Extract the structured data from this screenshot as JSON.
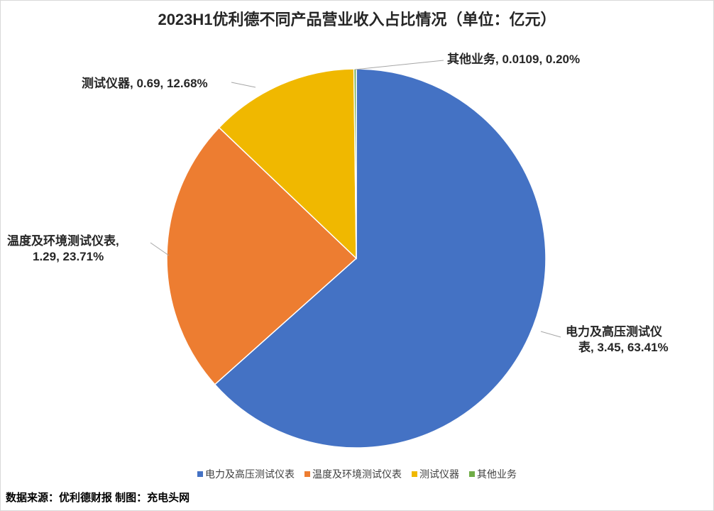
{
  "title": "2023H1优利德不同产品营业收入占比情况（单位：亿元）",
  "source": "数据来源：优利德财报 制图：充电头网",
  "chart_data": {
    "type": "pie",
    "title": "2023H1优利德不同产品营业收入占比情况（单位：亿元）",
    "unit": "亿元",
    "legend_position": "bottom",
    "slices": [
      {
        "name": "电力及高压测试仪表",
        "value": 3.45,
        "percent": 63.41,
        "color": "#4472C4",
        "label_lines": [
          "电力及高压测试仪",
          "表, 3.45, 63.41%"
        ]
      },
      {
        "name": "温度及环境测试仪表",
        "value": 1.29,
        "percent": 23.71,
        "color": "#ED7D31",
        "label_lines": [
          "温度及环境测试仪表,",
          "1.29, 23.71%"
        ]
      },
      {
        "name": "测试仪器",
        "value": 0.69,
        "percent": 12.68,
        "color": "#F0B800",
        "label_lines": [
          "测试仪器, 0.69, 12.68%"
        ]
      },
      {
        "name": "其他业务",
        "value": 0.0109,
        "percent": 0.2,
        "color": "#70AD47",
        "label_lines": [
          "其他业务, 0.0109, 0.20%"
        ]
      }
    ]
  }
}
